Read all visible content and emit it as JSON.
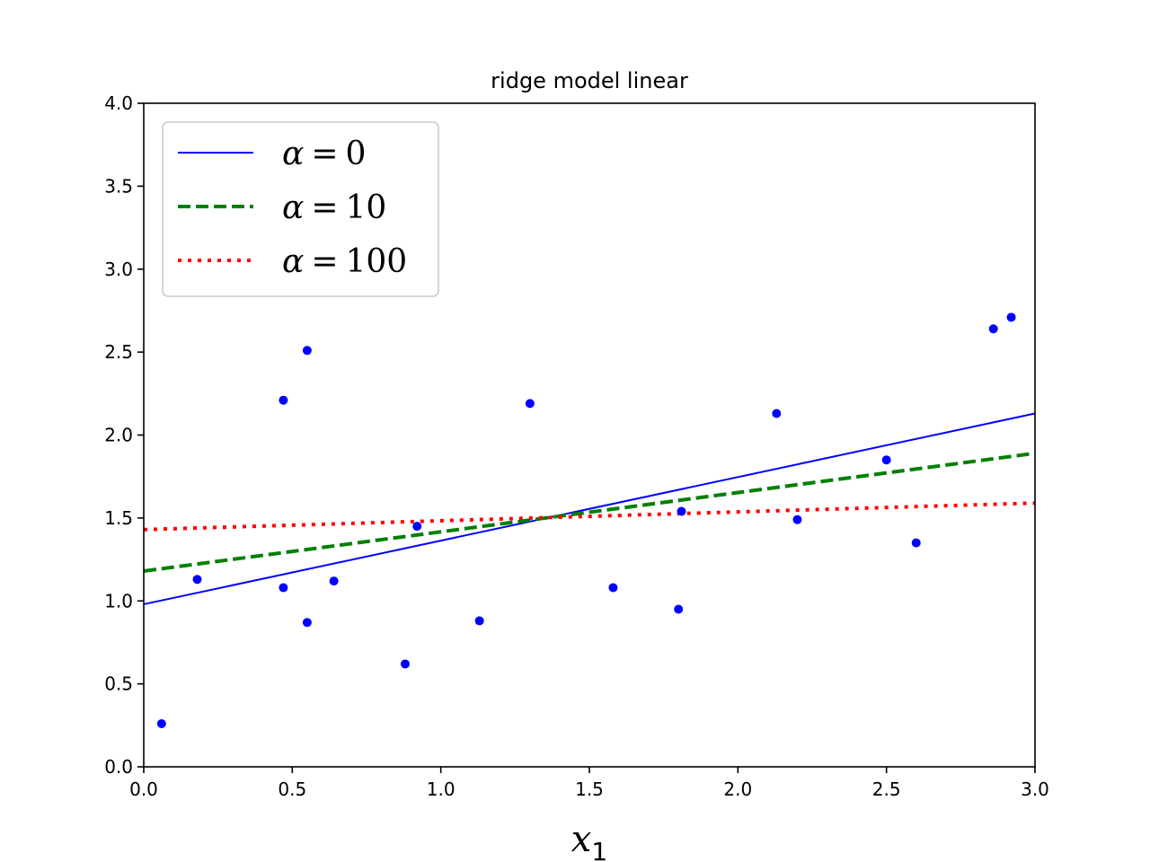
{
  "chart_data": {
    "type": "scatter",
    "title": "ridge model linear",
    "xlabel": "x",
    "xlabel_subscript": "1",
    "ylabel": "",
    "xlim": [
      0.0,
      3.0
    ],
    "ylim": [
      0.0,
      4.0
    ],
    "xticks": [
      "0.0",
      "0.5",
      "1.0",
      "1.5",
      "2.0",
      "2.5",
      "3.0"
    ],
    "yticks": [
      "0.0",
      "0.5",
      "1.0",
      "1.5",
      "2.0",
      "2.5",
      "3.0",
      "3.5",
      "4.0"
    ],
    "grid": false,
    "legend_position": "top-left",
    "points": {
      "color": "#0000ff",
      "x": [
        0.06,
        0.18,
        0.47,
        0.47,
        0.55,
        0.55,
        0.64,
        0.88,
        0.92,
        1.13,
        1.3,
        1.58,
        1.8,
        1.81,
        2.13,
        2.2,
        2.5,
        2.6,
        2.86,
        2.92
      ],
      "y": [
        0.26,
        1.13,
        2.21,
        1.08,
        2.51,
        0.87,
        1.12,
        0.62,
        1.45,
        0.88,
        2.19,
        1.08,
        0.95,
        1.54,
        2.13,
        1.49,
        1.85,
        1.35,
        2.64,
        2.71
      ]
    },
    "series": [
      {
        "name": "α = 0",
        "label_symbol": "α",
        "label_eq": "=",
        "label_value": "0",
        "style": "solid",
        "color": "#0000ff",
        "x": [
          0.0,
          3.0
        ],
        "y": [
          0.98,
          2.13
        ]
      },
      {
        "name": "α = 10",
        "label_symbol": "α",
        "label_eq": "=",
        "label_value": "10",
        "style": "dashed",
        "color": "#008000",
        "x": [
          0.0,
          3.0
        ],
        "y": [
          1.18,
          1.89
        ]
      },
      {
        "name": "α = 100",
        "label_symbol": "α",
        "label_eq": "=",
        "label_value": "100",
        "style": "dotted",
        "color": "#ff0000",
        "x": [
          0.0,
          3.0
        ],
        "y": [
          1.43,
          1.59
        ]
      }
    ]
  }
}
